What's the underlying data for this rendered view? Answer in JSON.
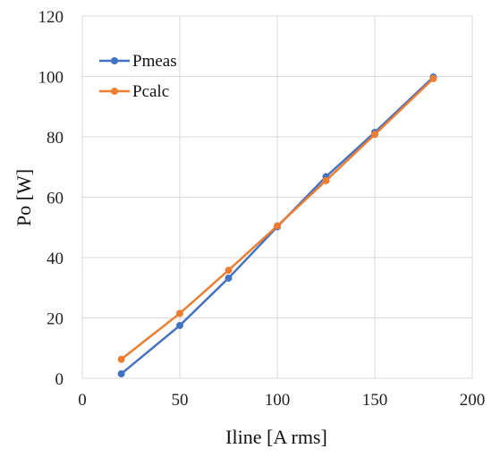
{
  "chart_data": {
    "type": "line",
    "xlabel": "Iline [A rms]",
    "ylabel": "Po [W]",
    "xlim": [
      0,
      200
    ],
    "ylim": [
      0,
      120
    ],
    "x_ticks": [
      0,
      50,
      100,
      150,
      200
    ],
    "y_ticks": [
      0,
      20,
      40,
      60,
      80,
      100,
      120
    ],
    "grid": true,
    "legend_position": "top-left",
    "series": [
      {
        "name": "Pmeas",
        "color": "#4472C4",
        "x": [
          20,
          50,
          75,
          100,
          125,
          150,
          180
        ],
        "y": [
          1.5,
          17.5,
          33.2,
          50.2,
          66.8,
          81.5,
          99.8
        ]
      },
      {
        "name": "Pcalc",
        "color": "#ED7D31",
        "x": [
          20,
          50,
          75,
          100,
          125,
          150,
          180
        ],
        "y": [
          6.3,
          21.5,
          35.8,
          50.5,
          65.5,
          80.8,
          99.3
        ]
      }
    ]
  }
}
